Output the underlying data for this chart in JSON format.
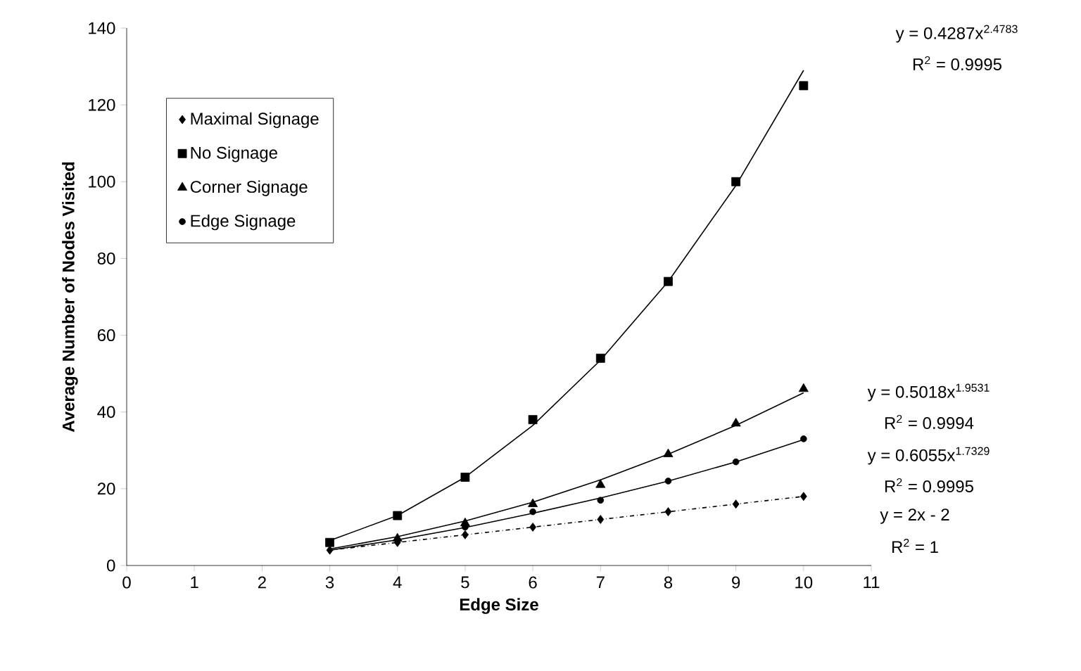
{
  "chart_data": {
    "type": "scatter",
    "xlabel": "Edge Size",
    "ylabel": "Average Number of Nodes Visited",
    "x": [
      3,
      4,
      5,
      6,
      7,
      8,
      9,
      10
    ],
    "xlim": [
      0,
      11
    ],
    "xticks": [
      0,
      1,
      2,
      3,
      4,
      5,
      6,
      7,
      8,
      9,
      10,
      11
    ],
    "ylim": [
      0,
      140
    ],
    "yticks": [
      0,
      20,
      40,
      60,
      80,
      100,
      120,
      140
    ],
    "grid": false,
    "legend": "top left",
    "series": [
      {
        "name": "Maximal Signage",
        "color": "#000000",
        "marker": "diamond",
        "values": [
          4,
          6,
          8,
          10,
          12,
          14,
          16,
          18
        ]
      },
      {
        "name": "No Signage",
        "color": "#000000",
        "marker": "square",
        "values": [
          6,
          13,
          23,
          38,
          54,
          74,
          100,
          125
        ]
      },
      {
        "name": "Corner Signage",
        "color": "#000000",
        "marker": "triangle",
        "values": [
          null,
          7,
          11,
          16,
          21,
          29,
          37,
          46
        ]
      },
      {
        "name": "Edge Signage",
        "color": "#000000",
        "marker": "circle",
        "values": [
          null,
          null,
          10,
          14,
          17,
          22,
          27,
          33
        ]
      },
      {
        "type": "line",
        "color": "#000000",
        "marker": "none",
        "line_style": "dashed",
        "x": [
          3,
          4,
          5,
          6,
          7,
          8,
          9,
          10
        ],
        "values": [
          4,
          6,
          8,
          10,
          12,
          14,
          16,
          18
        ]
      },
      {
        "type": "line",
        "color": "#000000",
        "marker": "none",
        "line_style": "solid",
        "x": [
          3,
          4,
          5,
          6,
          7,
          8,
          9,
          10
        ],
        "values": [
          6.5,
          13,
          23,
          36.5,
          53.5,
          74,
          99,
          129
        ]
      },
      {
        "type": "line",
        "color": "#000000",
        "marker": "none",
        "line_style": "solid",
        "x": [
          3,
          4,
          5,
          6,
          7,
          8,
          9,
          10
        ],
        "values": [
          4.3,
          7.5,
          11.6,
          16.5,
          22.3,
          29,
          36.5,
          45
        ]
      },
      {
        "type": "line",
        "color": "#000000",
        "marker": "none",
        "line_style": "solid",
        "x": [
          3,
          4,
          5,
          6,
          7,
          8,
          9,
          10
        ],
        "values": [
          4,
          6.7,
          9.9,
          13.6,
          17.6,
          22,
          27,
          32.8
        ]
      }
    ],
    "annotations": [
      "y = 0.4287x$^{2.4783}$",
      "R$^{2}$ = 0.9995",
      "y = 0.5018x$^{1.9531}$",
      "R$^{2}$ = 0.9994",
      "y = 0.6055x$^{1.7329}$",
      "R$^{2}$ = 0.9995",
      "y = 2x - 2",
      "R$^{2}$ = 1"
    ]
  }
}
